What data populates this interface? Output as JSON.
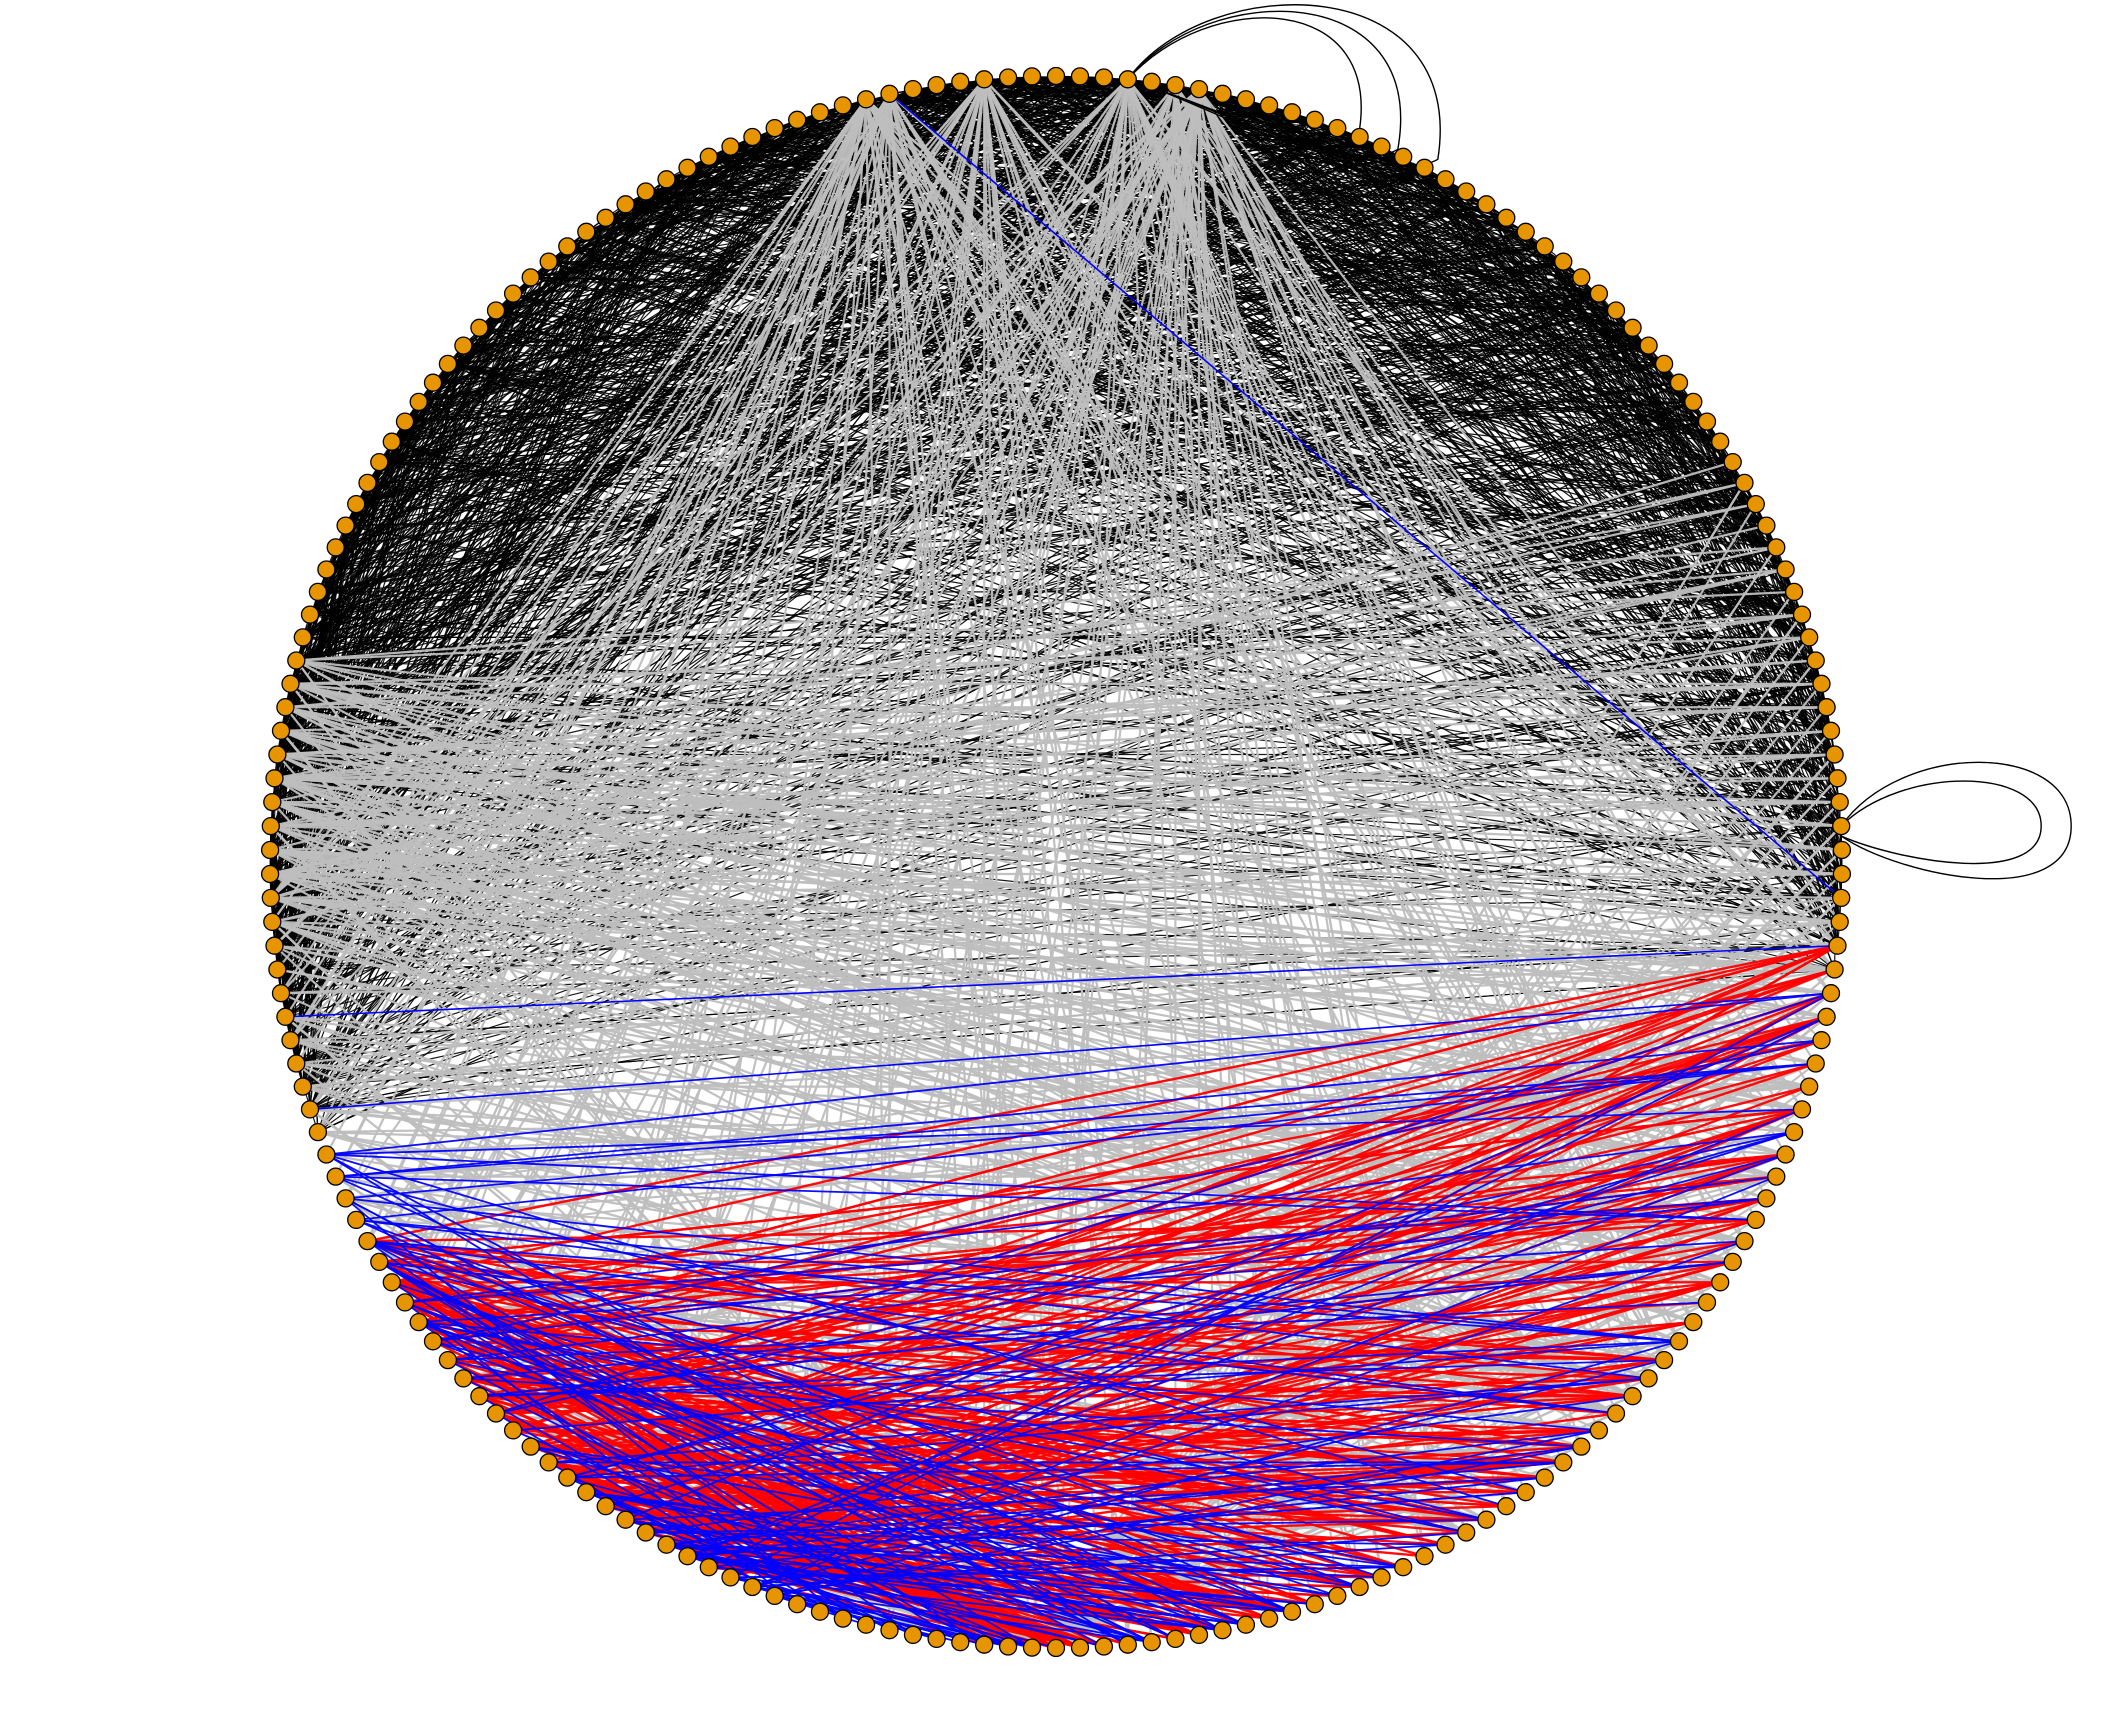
{
  "diagram": {
    "type": "circular-network-graph",
    "node_count": 206,
    "edge_classes": [
      {
        "name": "black",
        "color": "#000000",
        "count": 1500,
        "weight": 1.2
      },
      {
        "name": "gray",
        "color": "#bebebe",
        "count": 640,
        "weight": 2.2
      },
      {
        "name": "red",
        "color": "#ff0000",
        "count": 260,
        "weight": 2.4
      },
      {
        "name": "blue",
        "color": "#0000ff",
        "count": 150,
        "weight": 1.8
      }
    ],
    "node_style": {
      "fill": "#e69500",
      "stroke": "#000000"
    },
    "self_loops": 2
  }
}
